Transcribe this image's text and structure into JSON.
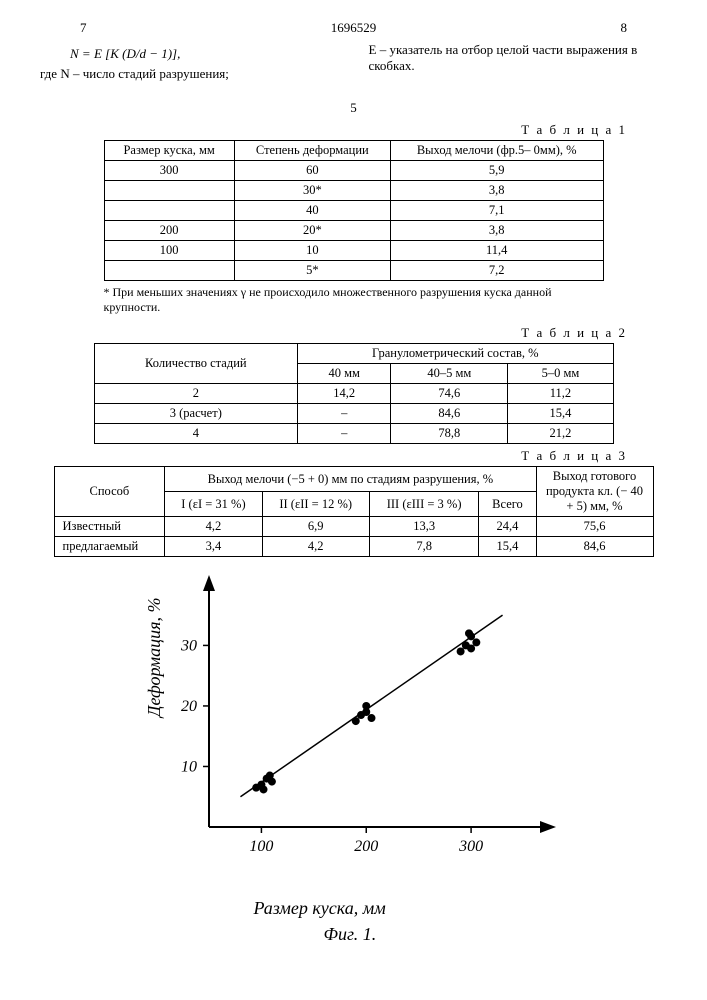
{
  "header": {
    "page_left": "7",
    "doc_number": "1696529",
    "page_right": "8"
  },
  "left_block": {
    "formula": "N = E [K (D/d − 1)],",
    "caption": "где N – число стадий разрушения;"
  },
  "right_block": {
    "text": "E – указатель на отбор целой части выражения в скобках."
  },
  "mid_5": "5",
  "table1": {
    "label": "Т а б л и ц а 1",
    "headers": [
      "Размер куска, мм",
      "Степень деформации",
      "Выход мелочи (фр.5–\n0мм), %"
    ],
    "rows": [
      [
        "300",
        "60",
        "5,9"
      ],
      [
        "",
        "30*",
        "3,8"
      ],
      [
        "",
        "40",
        "7,1"
      ],
      [
        "200",
        "20*",
        "3,8"
      ],
      [
        "100",
        "10",
        "11,4"
      ],
      [
        "",
        "5*",
        "7,2"
      ]
    ],
    "footnote": "* При меньших значениях γ не происходило множественного разрушения куска данной крупности."
  },
  "table2": {
    "label": "Т а б л и ц а 2",
    "header_top_left": "Количество стадий",
    "header_top_right": "Гранулометрический состав, %",
    "sub_headers": [
      "40 мм",
      "40–5 мм",
      "5–0 мм"
    ],
    "rows": [
      [
        "2",
        "14,2",
        "74,6",
        "11,2"
      ],
      [
        "3 (расчет)",
        "–",
        "84,6",
        "15,4"
      ],
      [
        "4",
        "–",
        "78,8",
        "21,2"
      ]
    ]
  },
  "table3": {
    "label": "Т а б л и ц а 3",
    "header_l": "Способ",
    "header_mid": "Выход мелочи (−5 + 0) мм по стадиям разрушения, %",
    "header_r": "Выход готового продукта кл. (− 40 + 5) мм, %",
    "sub_headers": [
      "I\n(εI = 31 %)",
      "II\n(εII = 12 %)",
      "III\n(εIII = 3 %)",
      "Всего"
    ],
    "rows": [
      [
        "Известный",
        "4,2",
        "6,9",
        "13,3",
        "24,4",
        "75,6"
      ],
      [
        "предлагаемый",
        "3,4",
        "4,2",
        "7,8",
        "15,4",
        "84,6"
      ]
    ]
  },
  "chart": {
    "type": "scatter",
    "x_label": "Размер куска, мм",
    "y_label": "Деформация, %",
    "fig_label": "Фиг. 1.",
    "xlim": [
      50,
      360
    ],
    "ylim": [
      0,
      38
    ],
    "x_ticks": [
      100,
      200,
      300
    ],
    "y_ticks": [
      10,
      20,
      30
    ],
    "background_color": "#ffffff",
    "axis_color": "#000000",
    "point_color": "#000000",
    "line_color": "#000000",
    "line_width": 1.5,
    "marker_size": 4,
    "line": {
      "x1": 80,
      "y1": 5,
      "x2": 330,
      "y2": 35
    },
    "points": [
      {
        "x": 95,
        "y": 6.5
      },
      {
        "x": 100,
        "y": 7.0
      },
      {
        "x": 102,
        "y": 6.2
      },
      {
        "x": 105,
        "y": 8.0
      },
      {
        "x": 110,
        "y": 7.5
      },
      {
        "x": 108,
        "y": 8.5
      },
      {
        "x": 190,
        "y": 17.5
      },
      {
        "x": 195,
        "y": 18.5
      },
      {
        "x": 200,
        "y": 19.0
      },
      {
        "x": 205,
        "y": 18.0
      },
      {
        "x": 200,
        "y": 20.0
      },
      {
        "x": 290,
        "y": 29.0
      },
      {
        "x": 295,
        "y": 30.0
      },
      {
        "x": 300,
        "y": 29.5
      },
      {
        "x": 305,
        "y": 30.5
      },
      {
        "x": 300,
        "y": 31.5
      },
      {
        "x": 298,
        "y": 32.0
      }
    ]
  }
}
